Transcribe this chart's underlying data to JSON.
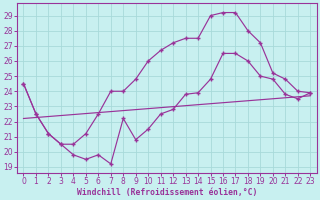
{
  "xlabel": "Windchill (Refroidissement éolien,°C)",
  "bg_color": "#c8f0f0",
  "grid_color": "#a8dada",
  "line_color": "#993399",
  "xlim": [
    -0.5,
    23.5
  ],
  "ylim": [
    18.6,
    29.8
  ],
  "xticks": [
    0,
    1,
    2,
    3,
    4,
    5,
    6,
    7,
    8,
    9,
    10,
    11,
    12,
    13,
    14,
    15,
    16,
    17,
    18,
    19,
    20,
    21,
    22,
    23
  ],
  "yticks": [
    19,
    20,
    21,
    22,
    23,
    24,
    25,
    26,
    27,
    28,
    29
  ],
  "upper_x": [
    0,
    1,
    2,
    3,
    4,
    5,
    6,
    7,
    8,
    9,
    10,
    11,
    12,
    13,
    14,
    15,
    16,
    17,
    18,
    19,
    20,
    21,
    22,
    23
  ],
  "upper_y": [
    24.5,
    22.5,
    21.2,
    20.5,
    20.5,
    21.2,
    22.5,
    24.0,
    24.0,
    24.8,
    26.0,
    26.7,
    27.2,
    27.5,
    27.5,
    29.0,
    29.2,
    29.2,
    28.0,
    27.2,
    25.2,
    24.8,
    24.0,
    23.9
  ],
  "lower_x": [
    0,
    1,
    2,
    3,
    4,
    5,
    6,
    7,
    8,
    9,
    10,
    11,
    12,
    13,
    14,
    15,
    16,
    17,
    18,
    19,
    20,
    21,
    22,
    23
  ],
  "lower_y": [
    24.5,
    22.5,
    21.2,
    20.5,
    19.8,
    19.5,
    19.8,
    19.2,
    22.2,
    20.8,
    21.5,
    22.5,
    22.8,
    23.8,
    23.9,
    24.8,
    26.5,
    26.5,
    26.0,
    25.0,
    24.8,
    23.8,
    23.5,
    23.9
  ],
  "trend_x": [
    0,
    23
  ],
  "trend_y": [
    22.2,
    23.7
  ]
}
